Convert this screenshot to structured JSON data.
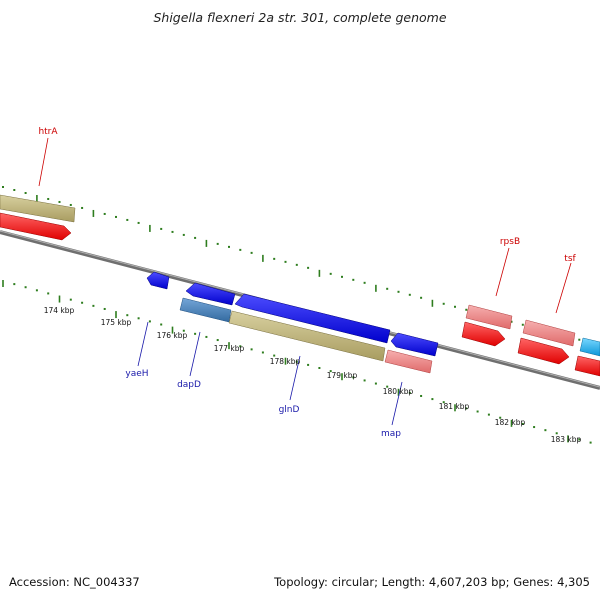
{
  "title": "Shigella flexneri 2a str. 301, complete genome",
  "footer": {
    "accession": "Accession: NC_004337",
    "summary": "Topology: circular; Length: 4,607,203 bp; Genes: 4,305"
  },
  "scale_labels": [
    "174 kbp",
    "175 kbp",
    "176 kbp",
    "177 kbp",
    "178 kbp",
    "179 kbp",
    "180 kbp",
    "181 kbp",
    "182 kbp",
    "183 kbp"
  ],
  "genes_forward": [
    "htrA",
    "rpsB",
    "tsf"
  ],
  "genes_reverse": [
    "yaeH",
    "dapD",
    "glnD",
    "map"
  ],
  "colors": {
    "backbone": "#8a8a8a",
    "tick": "#2e7d1e",
    "cds_forward": "#ff1a1a",
    "cds_forward_light": "#f08a8a",
    "cds_reverse": "#1a1ae6",
    "gene_khaki": "#c2b982",
    "gene_steelblue": "#4a84c0",
    "gene_cyan": "#22b5f0",
    "label_forward": "#cc0000",
    "label_reverse": "#1a1aaa"
  }
}
